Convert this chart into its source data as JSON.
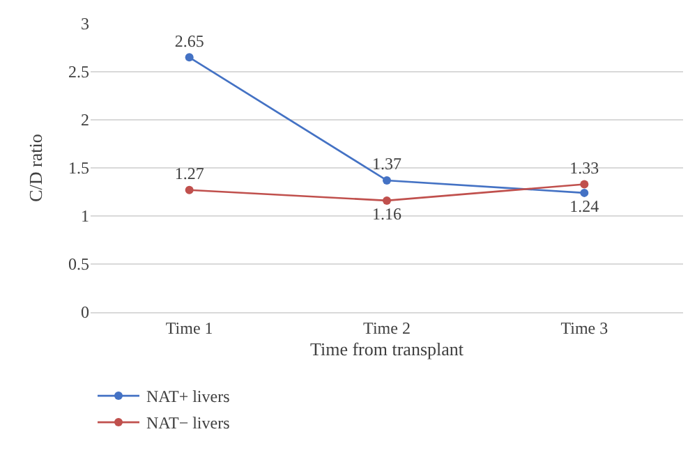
{
  "chart_data": {
    "type": "line",
    "xlabel": "Time from transplant",
    "ylabel": "C/D ratio",
    "categories": [
      "Time 1",
      "Time 2",
      "Time 3"
    ],
    "series": [
      {
        "name": "NAT+ livers",
        "color": "#4472c4",
        "values": [
          2.65,
          1.37,
          1.24
        ]
      },
      {
        "name": "NAT− livers",
        "color": "#c0504d",
        "values": [
          1.27,
          1.16,
          1.33
        ]
      }
    ],
    "ylim": [
      0,
      3
    ],
    "yticks": [
      0,
      0.5,
      1,
      1.5,
      2,
      2.5,
      3
    ],
    "grid": "y",
    "legend": "bottom left",
    "marker": "circle",
    "line_style": "solid",
    "data_labels": true
  }
}
